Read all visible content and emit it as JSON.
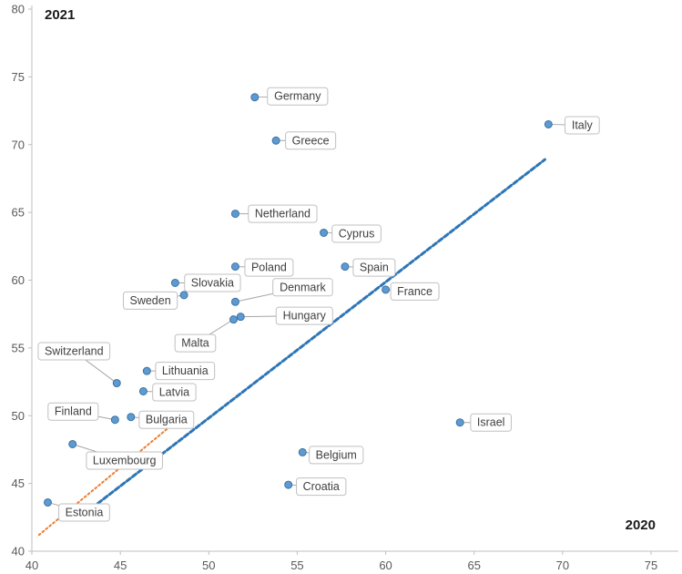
{
  "chart_data": {
    "type": "scatter",
    "title": "",
    "xlabel": "2020",
    "ylabel": "2021",
    "xlim": [
      40,
      75
    ],
    "ylim": [
      40,
      80
    ],
    "x_ticks": [
      40,
      45,
      50,
      55,
      60,
      65,
      70,
      75
    ],
    "y_ticks": [
      40,
      45,
      50,
      55,
      60,
      65,
      70,
      75,
      80
    ],
    "grid": false,
    "legend": "none",
    "marker_color": "#5b9bd5",
    "marker_stroke": "#41719c",
    "axis_color": "#bfbfbf",
    "tick_text_color": "#595959",
    "leader_color": "#a6a6a6",
    "label_box": {
      "fill": "#ffffff",
      "border": "#c0c0c0",
      "text_color": "#3f3f3f"
    },
    "points": [
      {
        "label": "Germany",
        "x": 52.6,
        "y": 73.5,
        "label_offset": [
          47,
          -1
        ]
      },
      {
        "label": "Italy",
        "x": 69.2,
        "y": 71.5,
        "label_offset": [
          37,
          1
        ]
      },
      {
        "label": "Greece",
        "x": 53.8,
        "y": 70.3,
        "label_offset": [
          38,
          0
        ]
      },
      {
        "label": "Netherland",
        "x": 51.5,
        "y": 64.9,
        "label_offset": [
          52,
          0
        ]
      },
      {
        "label": "Cyprus",
        "x": 56.5,
        "y": 63.5,
        "label_offset": [
          36,
          1
        ]
      },
      {
        "label": "Spain",
        "x": 57.7,
        "y": 61.0,
        "label_offset": [
          32,
          1
        ]
      },
      {
        "label": "Poland",
        "x": 51.5,
        "y": 61.0,
        "label_offset": [
          37,
          1
        ]
      },
      {
        "label": "Slovakia",
        "x": 48.1,
        "y": 59.8,
        "label_offset": [
          41,
          0
        ]
      },
      {
        "label": "Sweden",
        "x": 48.6,
        "y": 58.9,
        "label_offset": [
          -37,
          6
        ]
      },
      {
        "label": "Denmark",
        "x": 51.5,
        "y": 58.4,
        "label_offset": [
          74,
          -16
        ]
      },
      {
        "label": "France",
        "x": 60.0,
        "y": 59.3,
        "label_offset": [
          32,
          2
        ]
      },
      {
        "label": "Hungary",
        "x": 51.8,
        "y": 57.3,
        "label_offset": [
          70,
          -1
        ]
      },
      {
        "label": "Malta",
        "x": 51.4,
        "y": 57.1,
        "label_offset": [
          -42,
          26
        ]
      },
      {
        "label": "Switzerland",
        "x": 44.8,
        "y": 52.4,
        "label_offset": [
          -47,
          -35
        ]
      },
      {
        "label": "Lithuania",
        "x": 46.5,
        "y": 53.3,
        "label_offset": [
          42,
          0
        ]
      },
      {
        "label": "Latvia",
        "x": 46.3,
        "y": 51.8,
        "label_offset": [
          34,
          1
        ]
      },
      {
        "label": "Finland",
        "x": 44.7,
        "y": 49.7,
        "label_offset": [
          -46,
          -9
        ]
      },
      {
        "label": "Bulgaria",
        "x": 45.6,
        "y": 49.9,
        "label_offset": [
          39,
          3
        ]
      },
      {
        "label": "Israel",
        "x": 64.2,
        "y": 49.5,
        "label_offset": [
          34,
          0
        ]
      },
      {
        "label": "Belgium",
        "x": 55.3,
        "y": 47.3,
        "label_offset": [
          37,
          3
        ]
      },
      {
        "label": "Croatia",
        "x": 54.5,
        "y": 44.9,
        "label_offset": [
          36,
          2
        ]
      },
      {
        "label": "Luxembourg",
        "x": 42.3,
        "y": 47.9,
        "label_offset": [
          57,
          18
        ]
      },
      {
        "label": "Estonia",
        "x": 40.9,
        "y": 43.6,
        "label_offset": [
          40,
          11
        ]
      }
    ],
    "lines": [
      {
        "name": "trend-line-blue-dashed",
        "color": "#2e75b6",
        "style": "dashed",
        "width": 3,
        "x1": 43.4,
        "y1": 43.2,
        "x2": 69.0,
        "y2": 68.9
      },
      {
        "name": "trend-line-orange-dotted",
        "color": "#ed7d31",
        "style": "dotted",
        "width": 2,
        "x1": 40.4,
        "y1": 41.2,
        "x2": 47.9,
        "y2": 49.3
      }
    ]
  }
}
